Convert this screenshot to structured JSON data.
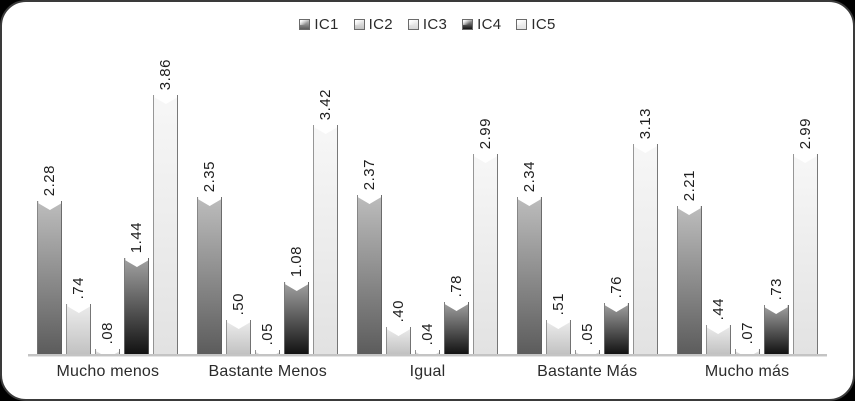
{
  "colors": {
    "page_background": "#000000",
    "card_background": "#ffffff",
    "card_border": "#3a3a3a",
    "axis_line": "#c4c4c4",
    "label_text": "#1e1e1e",
    "category_text": "#2b2b2b"
  },
  "chart_data": {
    "type": "bar",
    "title": "",
    "xlabel": "",
    "ylabel": "",
    "grid": false,
    "y_axis_visible": false,
    "ylim": [
      0,
      4.5
    ],
    "legend_position": "top",
    "categories": [
      "Mucho menos",
      "Bastante Menos",
      "Igual",
      "Bastante Más",
      "Mucho más"
    ],
    "series": [
      {
        "name": "IC1",
        "values": [
          2.28,
          2.35,
          2.37,
          2.34,
          2.21
        ],
        "labels": [
          "2.28",
          "2.35",
          "2.37",
          "2.34",
          "2.21"
        ],
        "color_top": "#bdbdbd",
        "color_bottom": "#5c5c5c"
      },
      {
        "name": "IC2",
        "values": [
          0.74,
          0.5,
          0.4,
          0.51,
          0.44
        ],
        "labels": [
          ".74",
          ".50",
          ".40",
          ".51",
          ".44"
        ],
        "color_top": "#ededed",
        "color_bottom": "#c2c2c2"
      },
      {
        "name": "IC3",
        "values": [
          0.08,
          0.05,
          0.04,
          0.05,
          0.07
        ],
        "labels": [
          ".08",
          ".05",
          ".04",
          ".05",
          ".07"
        ],
        "color_top": "#f4f4f4",
        "color_bottom": "#d6d6d6"
      },
      {
        "name": "IC4",
        "values": [
          1.44,
          1.08,
          0.78,
          0.76,
          0.73
        ],
        "labels": [
          "1.44",
          "1.08",
          ".78",
          ".76",
          ".73"
        ],
        "color_top": "#a2a2a2",
        "color_bottom": "#121212"
      },
      {
        "name": "IC5",
        "values": [
          3.86,
          3.42,
          2.99,
          3.13,
          2.99
        ],
        "labels": [
          "3.86",
          "3.42",
          "2.99",
          "3.13",
          "2.99"
        ],
        "color_top": "#f7f7f7",
        "color_bottom": "#e2e2e2"
      }
    ]
  }
}
